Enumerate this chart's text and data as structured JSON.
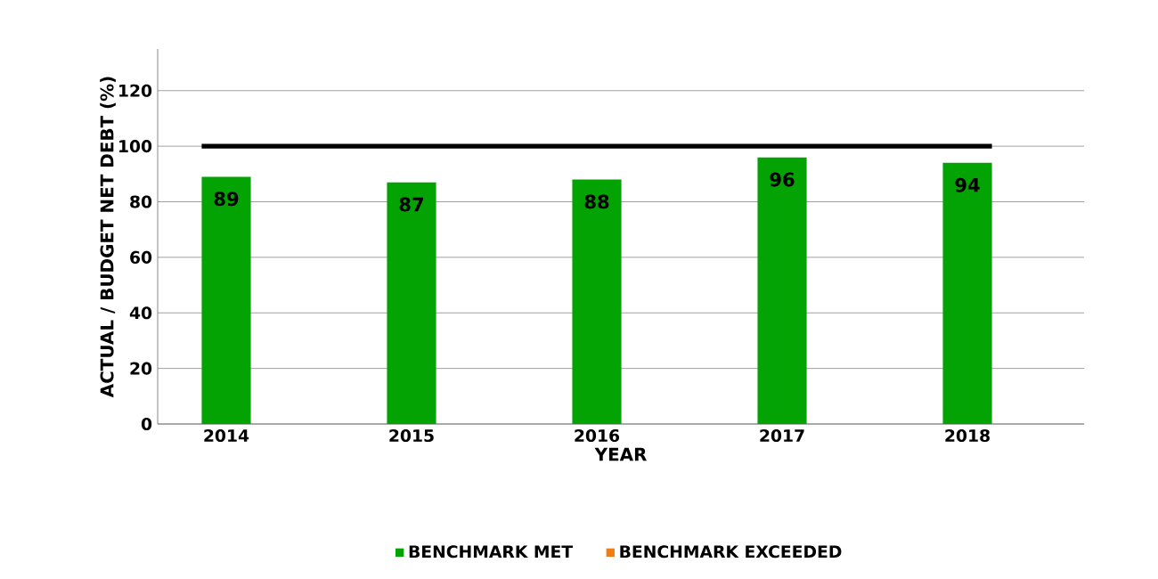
{
  "chart_data": {
    "type": "bar",
    "xlabel": "YEAR",
    "ylabel": "ACTUAL / BUDGET NET DEBT (%)",
    "categories": [
      "2014",
      "2015",
      "2016",
      "2017",
      "2018"
    ],
    "series": [
      {
        "name": "BENCHMARK MET",
        "color": "#02a302",
        "values": [
          89,
          87,
          88,
          96,
          94
        ]
      },
      {
        "name": "BENCHMARK EXCEEDED",
        "color": "#f07c12",
        "values": [
          null,
          null,
          null,
          null,
          null
        ]
      }
    ],
    "ylim": [
      0,
      135
    ],
    "yticks": [
      0,
      20,
      40,
      60,
      80,
      100,
      120
    ],
    "ref_lines": [
      {
        "axis": "y",
        "value": 100,
        "color": "#000000"
      }
    ],
    "grid": "y",
    "legend": "bottom",
    "data_labels": true
  }
}
